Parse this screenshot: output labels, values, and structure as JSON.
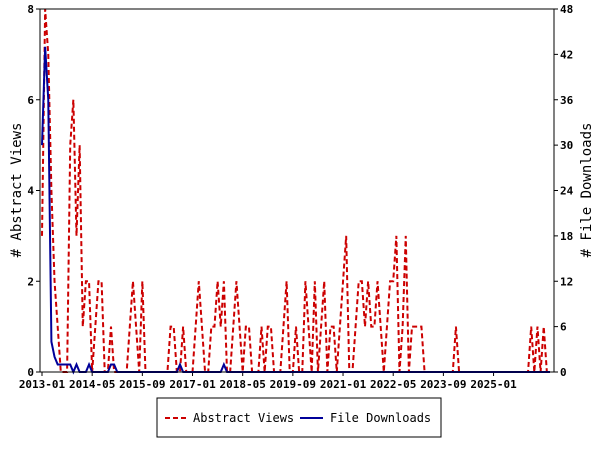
{
  "chart_data": {
    "type": "line",
    "x_tick_labels": [
      "2013-01",
      "2014-05",
      "2015-09",
      "2017-01",
      "2018-05",
      "2019-09",
      "2021-01",
      "2022-05",
      "2023-09",
      "2025-01"
    ],
    "y_left": {
      "label": "# Abstract Views",
      "range": [
        0,
        8
      ],
      "ticks": [
        "0",
        "2",
        "4",
        "6",
        "8"
      ]
    },
    "y_right": {
      "label": "# File Downloads",
      "range": [
        0,
        48
      ],
      "ticks": [
        "0",
        "6",
        "12",
        "18",
        "24",
        "30",
        "36",
        "42",
        "48"
      ]
    },
    "month_start": "2013-01",
    "month_end": "2025-05",
    "grid": false,
    "legend_position": "bottom",
    "series": [
      {
        "name": "Abstract Views",
        "axis": "left",
        "color": "#cc0000",
        "dash": "dashed",
        "values": [
          3,
          8,
          7,
          4,
          2,
          1,
          0,
          0,
          0,
          5,
          6,
          3,
          5,
          1,
          2,
          2,
          0,
          1,
          2,
          2,
          0,
          0,
          1,
          0,
          0,
          0,
          0,
          0,
          1,
          2,
          1,
          0,
          2,
          0,
          0,
          0,
          0,
          0,
          0,
          0,
          0,
          1,
          1,
          0,
          0,
          1,
          0,
          0,
          0,
          1,
          2,
          1,
          0,
          0,
          1,
          1,
          2,
          1,
          2,
          0,
          0,
          1,
          2,
          1,
          0,
          1,
          1,
          0,
          0,
          0,
          1,
          0,
          1,
          1,
          0,
          0,
          0,
          1,
          2,
          0,
          0,
          1,
          0,
          0,
          2,
          1,
          0,
          2,
          0,
          1,
          2,
          0,
          1,
          1,
          0,
          1,
          2,
          3,
          0,
          0,
          1,
          2,
          2,
          1,
          2,
          1,
          1,
          2,
          1,
          0,
          1,
          2,
          2,
          3,
          0,
          1,
          3,
          0,
          1,
          1,
          1,
          1,
          0,
          0,
          0,
          0,
          0,
          0,
          0,
          0,
          0,
          0,
          1,
          0,
          0,
          0,
          0,
          0,
          0,
          0,
          0,
          0,
          0,
          0,
          0,
          0,
          0,
          0,
          0,
          0,
          0,
          0,
          0,
          0,
          0,
          0,
          1,
          0,
          1,
          0,
          1,
          0,
          0
        ]
      },
      {
        "name": "File Downloads",
        "axis": "right",
        "color": "#000099",
        "dash": "solid",
        "values": [
          30,
          43,
          36,
          4,
          2,
          1,
          1,
          1,
          1,
          1,
          0,
          1,
          0,
          0,
          0,
          1,
          0,
          0,
          0,
          0,
          0,
          0,
          1,
          1,
          0,
          0,
          0,
          0,
          0,
          0,
          0,
          0,
          0,
          0,
          0,
          0,
          0,
          0,
          0,
          0,
          0,
          0,
          0,
          0,
          1,
          0,
          0,
          0,
          0,
          0,
          0,
          0,
          0,
          0,
          0,
          0,
          0,
          0,
          1,
          0,
          0,
          0,
          0,
          0,
          0,
          0,
          0,
          0,
          0,
          0,
          0,
          0,
          0,
          0,
          0,
          0,
          0,
          0,
          0,
          0,
          0,
          0,
          0,
          0,
          0,
          0,
          0,
          0,
          0,
          0,
          0,
          0,
          0,
          0,
          0,
          0,
          0,
          0,
          0,
          0,
          0,
          0,
          0,
          0,
          0,
          0,
          0,
          0,
          0,
          0,
          0,
          0,
          0,
          0,
          0,
          0,
          0,
          0,
          0,
          0,
          0,
          0,
          0,
          0,
          0,
          0,
          0,
          0,
          0,
          0,
          0,
          0,
          0,
          0,
          0,
          0,
          0,
          0,
          0,
          0,
          0,
          0,
          0,
          0,
          0,
          0,
          0,
          0,
          0,
          0,
          0,
          0,
          0,
          0,
          0,
          0,
          0,
          0,
          0,
          0,
          0,
          0,
          0
        ]
      }
    ]
  }
}
